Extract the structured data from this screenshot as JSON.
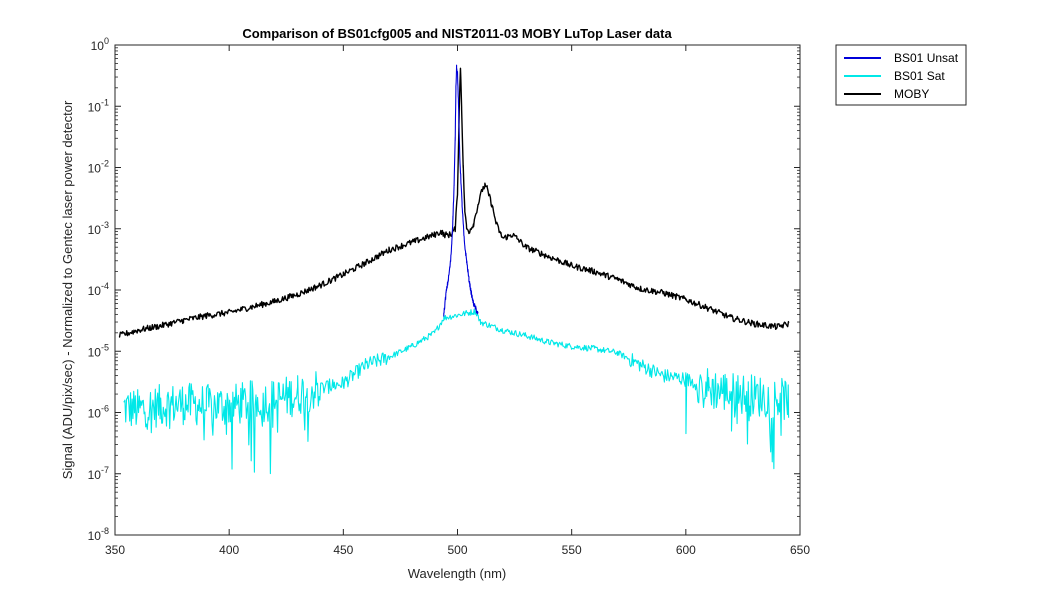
{
  "chart_data": {
    "type": "line",
    "title": "Comparison of BS01cfg005 and NIST2011-03 MOBY LuTop Laser data",
    "xlabel": "Wavelength (nm)",
    "ylabel": "Signal (ADU/pix/sec) - Normalized to Gentec laser power detector",
    "xlim": [
      350,
      650
    ],
    "ylim": [
      1e-08,
      1
    ],
    "yscale": "log",
    "grid": false,
    "legend_position": "outside-top-right",
    "x_ticks": [
      "350",
      "400",
      "450",
      "500",
      "550",
      "600",
      "650"
    ],
    "y_ticks": [
      {
        "base": "10",
        "exp": "0",
        "value": 1
      },
      {
        "base": "10",
        "exp": "-1",
        "value": 0.1
      },
      {
        "base": "10",
        "exp": "-2",
        "value": 0.01
      },
      {
        "base": "10",
        "exp": "-3",
        "value": 0.001
      },
      {
        "base": "10",
        "exp": "-4",
        "value": 0.0001
      },
      {
        "base": "10",
        "exp": "-5",
        "value": 1e-05
      },
      {
        "base": "10",
        "exp": "-6",
        "value": 1e-06
      },
      {
        "base": "10",
        "exp": "-7",
        "value": 1e-07
      },
      {
        "base": "10",
        "exp": "-8",
        "value": 1e-08
      }
    ],
    "series": [
      {
        "name": "BS01 Unsat",
        "color": "#0000d9",
        "x": [
          494,
          495,
          496,
          497,
          497.5,
          498,
          498.5,
          499,
          499.3,
          499.6,
          500,
          500.4,
          500.7,
          501,
          501.5,
          502,
          502.5,
          503,
          504,
          505,
          506,
          507,
          508,
          509
        ],
        "y": [
          4e-05,
          9e-05,
          0.00015,
          0.0003,
          0.0006,
          0.0015,
          0.005,
          0.03,
          0.2,
          0.45,
          0.35,
          0.12,
          0.04,
          0.015,
          0.006,
          0.0025,
          0.0012,
          0.0006,
          0.0003,
          0.00015,
          9e-05,
          6e-05,
          5e-05,
          4e-05
        ]
      },
      {
        "name": "BS01 Sat",
        "color": "#00e8e8",
        "x": [
          354,
          360,
          370,
          380,
          390,
          400,
          410,
          420,
          430,
          440,
          450,
          460,
          470,
          480,
          490,
          494,
          508,
          510,
          520,
          530,
          540,
          550,
          560,
          570,
          580,
          590,
          600,
          610,
          620,
          630,
          640,
          645
        ],
        "y": [
          1.2e-06,
          1.1e-06,
          1.3e-06,
          1.4e-06,
          1.3e-06,
          1.3e-06,
          1.5e-06,
          1.6e-06,
          2e-06,
          2.5e-06,
          3e-06,
          6e-06,
          8e-06,
          1.2e-05,
          2e-05,
          3.5e-05,
          4.5e-05,
          3e-05,
          2.2e-05,
          1.8e-05,
          1.4e-05,
          1.2e-05,
          1.1e-05,
          9.5e-06,
          6e-06,
          4e-06,
          3.5e-06,
          2.5e-06,
          2.1e-06,
          1.9e-06,
          1.7e-06,
          1.6e-06
        ]
      },
      {
        "name": "MOBY",
        "color": "#000000",
        "x": [
          352,
          360,
          370,
          380,
          390,
          400,
          410,
          420,
          430,
          440,
          450,
          460,
          470,
          480,
          490,
          493,
          494,
          495,
          497,
          498,
          499,
          500,
          500.8,
          501.3,
          501.8,
          502.5,
          503.2,
          504,
          505,
          507,
          509,
          511,
          512,
          513,
          515,
          517,
          519,
          520,
          522,
          524,
          526,
          530,
          540,
          550,
          560,
          570,
          580,
          590,
          600,
          610,
          620,
          630,
          640,
          645
        ],
        "y": [
          1.8e-05,
          2.2e-05,
          2.6e-05,
          3.2e-05,
          3.8e-05,
          4.3e-05,
          5.3e-05,
          6.5e-05,
          8.5e-05,
          0.00012,
          0.00018,
          0.00028,
          0.00045,
          0.0006,
          0.0008,
          0.0009,
          0.0008,
          0.0008,
          0.0008,
          0.0009,
          0.001,
          0.004,
          0.1,
          0.45,
          0.1,
          0.01,
          0.002,
          0.001,
          0.0009,
          0.0012,
          0.0025,
          0.0045,
          0.005,
          0.0045,
          0.0025,
          0.0012,
          0.0008,
          0.0007,
          0.00075,
          0.0008,
          0.0007,
          0.0005,
          0.00035,
          0.00025,
          0.0002,
          0.00015,
          0.000105,
          9e-05,
          7e-05,
          5e-05,
          3.5e-05,
          2.8e-05,
          2.5e-05,
          2.8e-05
        ]
      }
    ]
  }
}
